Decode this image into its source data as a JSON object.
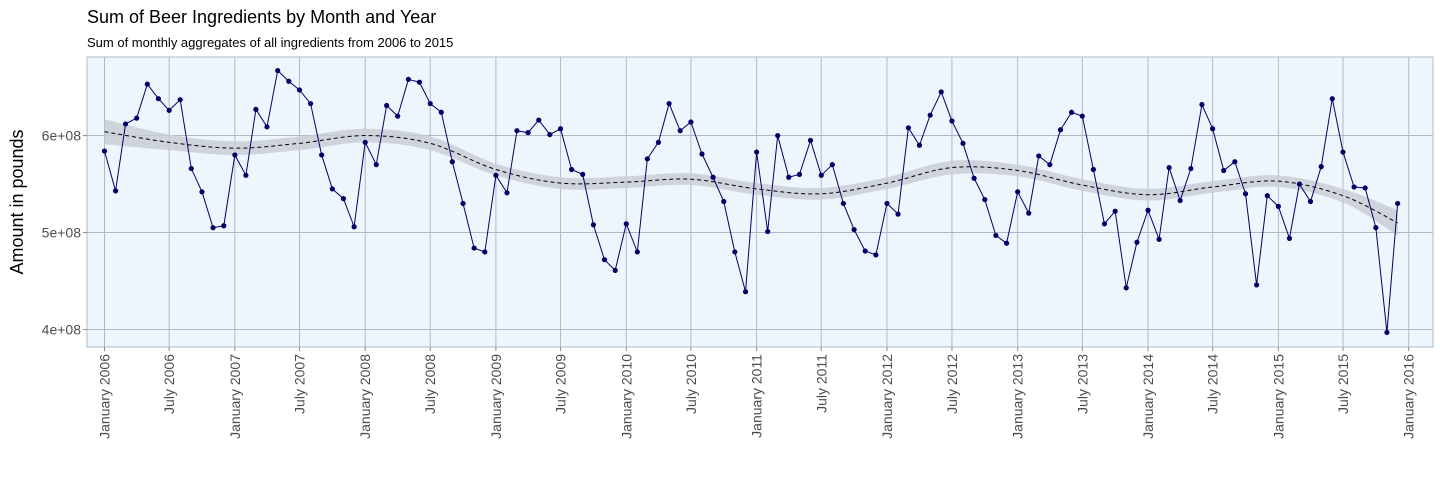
{
  "chart_data": {
    "type": "line",
    "title": "Sum of Beer Ingredients by Month and Year",
    "subtitle": "Sum of monthly aggregates of all ingredients from 2006 to 2015",
    "xlabel": "",
    "ylabel": "Amount in pounds",
    "x_axis": {
      "type": "date",
      "range": [
        "2005-11-13",
        "2016-03-09"
      ],
      "tick_labels": [
        {
          "date": "2006-01-01",
          "label": "January 2006"
        },
        {
          "date": "2006-07-01",
          "label": "July 2006"
        },
        {
          "date": "2007-01-01",
          "label": "January 2007"
        },
        {
          "date": "2007-07-01",
          "label": "July 2007"
        },
        {
          "date": "2008-01-01",
          "label": "January 2008"
        },
        {
          "date": "2008-07-01",
          "label": "July 2008"
        },
        {
          "date": "2009-01-01",
          "label": "January 2009"
        },
        {
          "date": "2009-07-01",
          "label": "July 2009"
        },
        {
          "date": "2010-01-01",
          "label": "January 2010"
        },
        {
          "date": "2010-07-01",
          "label": "July 2010"
        },
        {
          "date": "2011-01-01",
          "label": "January 2011"
        },
        {
          "date": "2011-07-01",
          "label": "July 2011"
        },
        {
          "date": "2012-01-01",
          "label": "January 2012"
        },
        {
          "date": "2012-07-01",
          "label": "July 2012"
        },
        {
          "date": "2013-01-01",
          "label": "January 2013"
        },
        {
          "date": "2013-07-01",
          "label": "July 2013"
        },
        {
          "date": "2014-01-01",
          "label": "January 2014"
        },
        {
          "date": "2014-07-01",
          "label": "July 2014"
        },
        {
          "date": "2015-01-01",
          "label": "January 2015"
        },
        {
          "date": "2015-07-01",
          "label": "July 2015"
        },
        {
          "date": "2016-01-01",
          "label": "January 2016"
        }
      ]
    },
    "y_axis": {
      "range": [
        382000000,
        681000000
      ],
      "ticks": [
        {
          "value": 400000000,
          "label": "4e+08"
        },
        {
          "value": 500000000,
          "label": "5e+08"
        },
        {
          "value": 600000000,
          "label": "6e+08"
        }
      ]
    },
    "grid": true,
    "panel_background": "#EEF6FD",
    "grid_color": "#B0B8C8",
    "series": [
      {
        "kind": "line-with-points",
        "color": "#000066",
        "x": [
          "2006-01-01",
          "2006-02-01",
          "2006-03-01",
          "2006-04-01",
          "2006-05-01",
          "2006-06-01",
          "2006-07-01",
          "2006-08-01",
          "2006-09-01",
          "2006-10-01",
          "2006-11-01",
          "2006-12-01",
          "2007-01-01",
          "2007-02-01",
          "2007-03-01",
          "2007-04-01",
          "2007-05-01",
          "2007-06-01",
          "2007-07-01",
          "2007-08-01",
          "2007-09-01",
          "2007-10-01",
          "2007-11-01",
          "2007-12-01",
          "2008-01-01",
          "2008-02-01",
          "2008-03-01",
          "2008-04-01",
          "2008-05-01",
          "2008-06-01",
          "2008-07-01",
          "2008-08-01",
          "2008-09-01",
          "2008-10-01",
          "2008-11-01",
          "2008-12-01",
          "2009-01-01",
          "2009-02-01",
          "2009-03-01",
          "2009-04-01",
          "2009-05-01",
          "2009-06-01",
          "2009-07-01",
          "2009-08-01",
          "2009-09-01",
          "2009-10-01",
          "2009-11-01",
          "2009-12-01",
          "2010-01-01",
          "2010-02-01",
          "2010-03-01",
          "2010-04-01",
          "2010-05-01",
          "2010-06-01",
          "2010-07-01",
          "2010-08-01",
          "2010-09-01",
          "2010-10-01",
          "2010-11-01",
          "2010-12-01",
          "2011-01-01",
          "2011-02-01",
          "2011-03-01",
          "2011-04-01",
          "2011-05-01",
          "2011-06-01",
          "2011-07-01",
          "2011-08-01",
          "2011-09-01",
          "2011-10-01",
          "2011-11-01",
          "2011-12-01",
          "2012-01-01",
          "2012-02-01",
          "2012-03-01",
          "2012-04-01",
          "2012-05-01",
          "2012-06-01",
          "2012-07-01",
          "2012-08-01",
          "2012-09-01",
          "2012-10-01",
          "2012-11-01",
          "2012-12-01",
          "2013-01-01",
          "2013-02-01",
          "2013-03-01",
          "2013-04-01",
          "2013-05-01",
          "2013-06-01",
          "2013-07-01",
          "2013-08-01",
          "2013-09-01",
          "2013-10-01",
          "2013-11-01",
          "2013-12-01",
          "2014-01-01",
          "2014-02-01",
          "2014-03-01",
          "2014-04-01",
          "2014-05-01",
          "2014-06-01",
          "2014-07-01",
          "2014-08-01",
          "2014-09-01",
          "2014-10-01",
          "2014-11-01",
          "2014-12-01",
          "2015-01-01",
          "2015-02-01",
          "2015-03-01",
          "2015-04-01",
          "2015-05-01",
          "2015-06-01",
          "2015-07-01",
          "2015-08-01",
          "2015-09-01",
          "2015-10-01",
          "2015-11-01",
          "2015-12-01"
        ],
        "y": [
          584000000,
          543000000,
          612000000,
          618000000,
          653000000,
          638000000,
          626000000,
          637000000,
          566000000,
          542000000,
          505000000,
          507000000,
          580000000,
          559000000,
          627000000,
          609000000,
          667000000,
          656000000,
          647000000,
          633000000,
          580000000,
          545000000,
          535000000,
          506000000,
          593000000,
          570000000,
          631000000,
          620000000,
          658000000,
          655000000,
          633000000,
          624000000,
          573000000,
          530000000,
          484000000,
          480000000,
          559000000,
          541000000,
          605000000,
          603000000,
          616000000,
          601000000,
          607000000,
          565000000,
          560000000,
          508000000,
          472000000,
          461000000,
          509000000,
          480000000,
          576000000,
          593000000,
          633000000,
          605000000,
          614000000,
          581000000,
          557000000,
          532000000,
          480000000,
          439000000,
          583000000,
          501000000,
          600000000,
          557000000,
          560000000,
          595000000,
          559000000,
          570000000,
          530000000,
          503000000,
          481000000,
          477000000,
          530000000,
          519000000,
          608000000,
          590000000,
          621000000,
          645000000,
          615000000,
          592000000,
          556000000,
          534000000,
          497000000,
          489000000,
          542000000,
          520000000,
          579000000,
          570000000,
          606000000,
          624000000,
          620000000,
          565000000,
          509000000,
          522000000,
          443000000,
          490000000,
          523000000,
          493000000,
          567000000,
          533000000,
          566000000,
          632000000,
          607000000,
          564000000,
          573000000,
          540000000,
          446000000,
          538000000,
          527000000,
          494000000,
          550000000,
          532000000,
          568000000,
          638000000,
          583000000,
          547000000,
          546000000,
          505000000,
          397000000,
          530000000
        ]
      },
      {
        "kind": "loess-smooth",
        "color": "#000000",
        "dash": true,
        "band_color": "#C8CDD6",
        "x": [
          "2006-01-01",
          "2006-07-01",
          "2007-01-01",
          "2007-07-01",
          "2008-01-01",
          "2008-07-01",
          "2009-01-01",
          "2009-07-01",
          "2010-01-01",
          "2010-07-01",
          "2011-01-01",
          "2011-07-01",
          "2012-01-01",
          "2012-07-01",
          "2013-01-01",
          "2013-07-01",
          "2014-01-01",
          "2014-07-01",
          "2015-01-01",
          "2015-07-01",
          "2015-12-01"
        ],
        "y": [
          604000000,
          593000000,
          587000000,
          592000000,
          600000000,
          592000000,
          565000000,
          551000000,
          552000000,
          555000000,
          545000000,
          540000000,
          551000000,
          567000000,
          564000000,
          549000000,
          539000000,
          547000000,
          553000000,
          538000000,
          510000000
        ],
        "band_halfwidth": [
          13000000,
          8000000,
          7000000,
          7000000,
          7000000,
          7000000,
          6000000,
          6000000,
          6000000,
          6000000,
          6000000,
          6000000,
          6000000,
          7000000,
          6000000,
          6000000,
          6000000,
          6000000,
          6000000,
          7000000,
          13000000
        ]
      }
    ]
  }
}
